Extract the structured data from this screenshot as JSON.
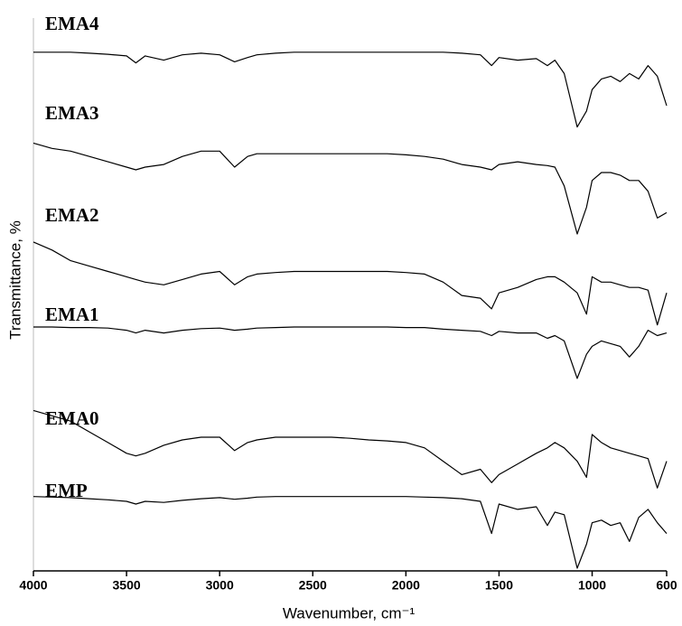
{
  "chart_data": {
    "type": "line",
    "xlabel": "Wavenumber, cm⁻¹",
    "ylabel": "Transmittance, %",
    "x": [
      4000,
      3900,
      3800,
      3700,
      3600,
      3500,
      3450,
      3400,
      3300,
      3200,
      3100,
      3000,
      2920,
      2850,
      2800,
      2700,
      2600,
      2500,
      2400,
      2300,
      2200,
      2100,
      2000,
      1900,
      1800,
      1700,
      1600,
      1540,
      1500,
      1400,
      1300,
      1240,
      1200,
      1150,
      1080,
      1030,
      1000,
      950,
      900,
      850,
      800,
      750,
      700,
      650,
      600
    ],
    "xlim": [
      4000,
      600
    ],
    "xticks": [
      4000,
      3500,
      3000,
      2500,
      2000,
      1500,
      1000,
      600
    ],
    "ylim": [
      0,
      100
    ],
    "series": [
      {
        "name": "EMA4",
        "color": "#000000",
        "values": [
          97,
          97,
          97,
          96.8,
          96.6,
          96.3,
          95,
          96.3,
          95.5,
          96.5,
          96.8,
          96.5,
          95.2,
          96,
          96.5,
          96.8,
          97,
          97,
          97,
          97,
          97,
          97,
          97,
          97,
          97,
          96.8,
          96.5,
          94.5,
          96,
          95.5,
          95.8,
          94.5,
          95.5,
          93,
          83,
          86,
          90,
          92,
          92.5,
          91.5,
          93,
          92,
          94.5,
          92.5,
          87
        ]
      },
      {
        "name": "EMA3",
        "color": "#000000",
        "values": [
          80,
          79,
          78.5,
          77.5,
          76.5,
          75.5,
          75,
          75.5,
          76,
          77.5,
          78.5,
          78.5,
          75.5,
          77.5,
          78,
          78,
          78,
          78,
          78,
          78,
          78,
          78,
          77.8,
          77.5,
          77,
          76,
          75.5,
          75,
          76,
          76.5,
          76,
          75.8,
          75.5,
          72,
          63,
          68,
          73,
          74.5,
          74.5,
          74,
          73,
          73,
          71,
          66,
          67
        ]
      },
      {
        "name": "EMA2",
        "color": "#000000",
        "values": [
          61.5,
          60,
          58,
          57,
          56,
          55,
          54.5,
          54,
          53.5,
          54.5,
          55.5,
          56,
          53.5,
          55,
          55.5,
          55.8,
          56,
          56,
          56,
          56,
          56,
          56,
          55.8,
          55.5,
          54,
          51.5,
          51,
          49,
          52,
          53,
          54.5,
          55,
          55,
          54,
          52,
          48,
          55,
          54,
          54,
          53.5,
          53,
          53,
          52.5,
          46,
          52
        ]
      },
      {
        "name": "EMA1",
        "color": "#000000",
        "values": [
          45.6,
          45.6,
          45.5,
          45.5,
          45.4,
          45,
          44.5,
          45,
          44.5,
          45,
          45.3,
          45.4,
          45,
          45.2,
          45.4,
          45.5,
          45.6,
          45.6,
          45.6,
          45.6,
          45.6,
          45.6,
          45.5,
          45.5,
          45.2,
          45,
          44.8,
          44,
          44.8,
          44.5,
          44.5,
          43.5,
          44,
          43,
          36,
          40.5,
          42,
          43,
          42.5,
          42,
          40,
          42,
          45,
          44,
          44.5
        ]
      },
      {
        "name": "EMA0",
        "color": "#000000",
        "values": [
          30,
          29,
          28,
          26,
          24,
          22,
          21.5,
          22,
          23.5,
          24.5,
          25,
          25,
          22.5,
          24,
          24.5,
          25,
          25,
          25,
          25,
          24.8,
          24.5,
          24.3,
          24,
          23,
          20.5,
          18,
          19,
          16.5,
          18,
          20,
          22,
          23,
          24,
          23,
          20.5,
          17.5,
          25.5,
          24,
          23,
          22.5,
          22,
          21.5,
          21,
          15.5,
          20.5
        ]
      },
      {
        "name": "EMP",
        "color": "#000000",
        "values": [
          13.9,
          13.8,
          13.7,
          13.5,
          13.3,
          13,
          12.5,
          13,
          12.8,
          13.2,
          13.5,
          13.7,
          13.4,
          13.6,
          13.8,
          13.9,
          13.9,
          13.9,
          13.9,
          13.9,
          13.9,
          13.9,
          13.9,
          13.8,
          13.7,
          13.5,
          13,
          7,
          12.5,
          11.5,
          12,
          8.5,
          11,
          10.5,
          0.5,
          5,
          9,
          9.5,
          8.5,
          9,
          5.5,
          10,
          11.5,
          9,
          7
        ]
      }
    ]
  }
}
